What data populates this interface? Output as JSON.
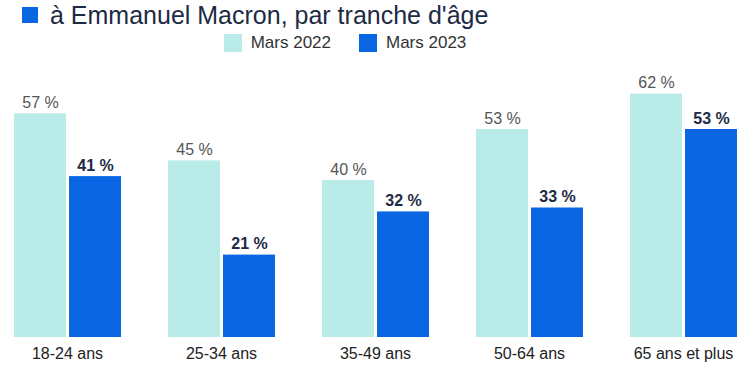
{
  "chart_data": {
    "type": "bar",
    "title": "à Emmanuel Macron, par tranche d'âge",
    "categories": [
      "18-24 ans",
      "25-34 ans",
      "35-49 ans",
      "50-64 ans",
      "65 ans et plus"
    ],
    "series": [
      {
        "name": "Mars 2022",
        "color": "#b9ece8",
        "values": [
          57,
          45,
          40,
          53,
          62
        ],
        "value_labels": [
          "57 %",
          "45 %",
          "40 %",
          "53 %",
          "62 %"
        ]
      },
      {
        "name": "Mars 2023",
        "color": "#0b66e4",
        "values": [
          41,
          21,
          32,
          33,
          53
        ],
        "value_labels": [
          "41 %",
          "21 %",
          "32 %",
          "33 %",
          "53 %"
        ]
      }
    ],
    "ylim": [
      0,
      66
    ],
    "data_labels": true,
    "tick_labels": "x",
    "legend": "top"
  }
}
